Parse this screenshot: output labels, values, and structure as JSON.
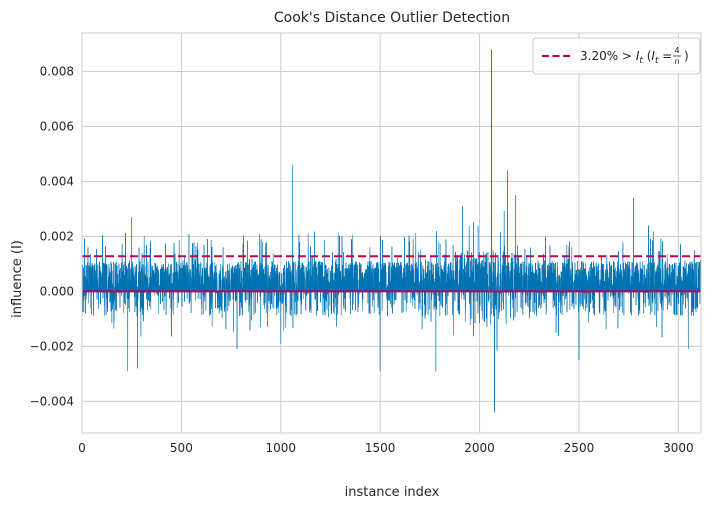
{
  "chart_data": {
    "type": "line",
    "title": "Cook's Distance Outlier Detection",
    "xlabel": "instance index",
    "ylabel": "influence (I)",
    "xlim": [
      0,
      3114
    ],
    "ylim": [
      -0.00515,
      0.0094
    ],
    "x_ticks": [
      0,
      500,
      1000,
      1500,
      2000,
      2500,
      3000
    ],
    "x_tick_labels": [
      "0",
      "500",
      "1000",
      "1500",
      "2000",
      "2500",
      "3000"
    ],
    "y_ticks": [
      -0.004,
      -0.002,
      0.0,
      0.002,
      0.004,
      0.006,
      0.008
    ],
    "y_tick_labels": [
      "−0.004",
      "−0.002",
      "0.000",
      "0.002",
      "0.004",
      "0.006",
      "0.008"
    ],
    "grid": true,
    "legend_position": "top-right",
    "series": [
      {
        "kind": "stem",
        "color": "#0072b2",
        "n_points": 3114,
        "notable_points": [
          {
            "x": 30,
            "y": 0.0016
          },
          {
            "x": 230,
            "y": -0.0029
          },
          {
            "x": 250,
            "y": 0.0027
          },
          {
            "x": 280,
            "y": -0.0028
          },
          {
            "x": 780,
            "y": -0.0021
          },
          {
            "x": 1000,
            "y": -0.0019
          },
          {
            "x": 1060,
            "y": 0.0046
          },
          {
            "x": 1500,
            "y": -0.0029
          },
          {
            "x": 1780,
            "y": -0.0029
          },
          {
            "x": 1915,
            "y": 0.0031
          },
          {
            "x": 2060,
            "y": 0.0088
          },
          {
            "x": 2075,
            "y": -0.0044
          },
          {
            "x": 2140,
            "y": 0.0044
          },
          {
            "x": 2180,
            "y": 0.0035
          },
          {
            "x": 2500,
            "y": -0.0025
          },
          {
            "x": 2775,
            "y": 0.0034
          },
          {
            "x": 2850,
            "y": 0.0024
          },
          {
            "x": 3050,
            "y": -0.0021
          }
        ]
      },
      {
        "kind": "threshold",
        "style": "dashed",
        "color": "#c1004f",
        "y": 0.00128,
        "legend_label": "3.20% > ",
        "legend_math": {
          "I": "I",
          "sub_t": "t",
          "paren_open": " (",
          "eq": " = ",
          "numerator": "4",
          "denominator": "n",
          "paren_close": ")"
        }
      },
      {
        "kind": "baseline",
        "color": "#c1004f",
        "y": 0.0
      }
    ]
  }
}
